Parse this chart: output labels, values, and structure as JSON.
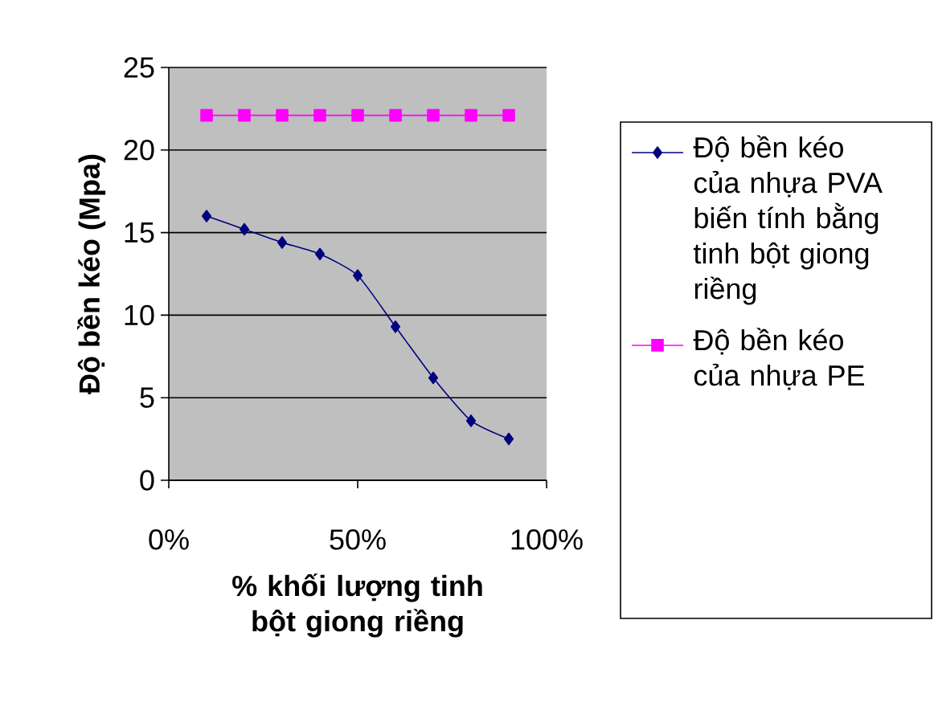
{
  "chart_data": {
    "type": "line",
    "xlabel": "% khối lượng tinh bột giong riềng",
    "ylabel": "Độ bền kéo (Mpa)",
    "xlim": [
      0,
      100
    ],
    "xticks": [
      {
        "value": 0,
        "label": "0%"
      },
      {
        "value": 50,
        "label": "50%"
      },
      {
        "value": 100,
        "label": "100%"
      }
    ],
    "ylim": [
      0,
      25
    ],
    "yticks": [
      0,
      5,
      10,
      15,
      20,
      25
    ],
    "grid": "y",
    "legend": "right",
    "series": [
      {
        "name": "Độ bền kéo của nhựa PVA biến tính bằng tinh bột giong riềng",
        "color": "#000080",
        "marker": "diamond",
        "x": [
          10,
          20,
          30,
          40,
          50,
          60,
          70,
          80,
          90
        ],
        "values": [
          16.0,
          15.2,
          14.4,
          13.7,
          12.4,
          9.3,
          6.2,
          3.6,
          2.5
        ]
      },
      {
        "name": "Độ bền kéo của nhựa PE",
        "color": "#ff00ff",
        "marker": "square",
        "x": [
          10,
          20,
          30,
          40,
          50,
          60,
          70,
          80,
          90
        ],
        "values": [
          22.1,
          22.1,
          22.1,
          22.1,
          22.1,
          22.1,
          22.1,
          22.1,
          22.1
        ]
      }
    ]
  }
}
